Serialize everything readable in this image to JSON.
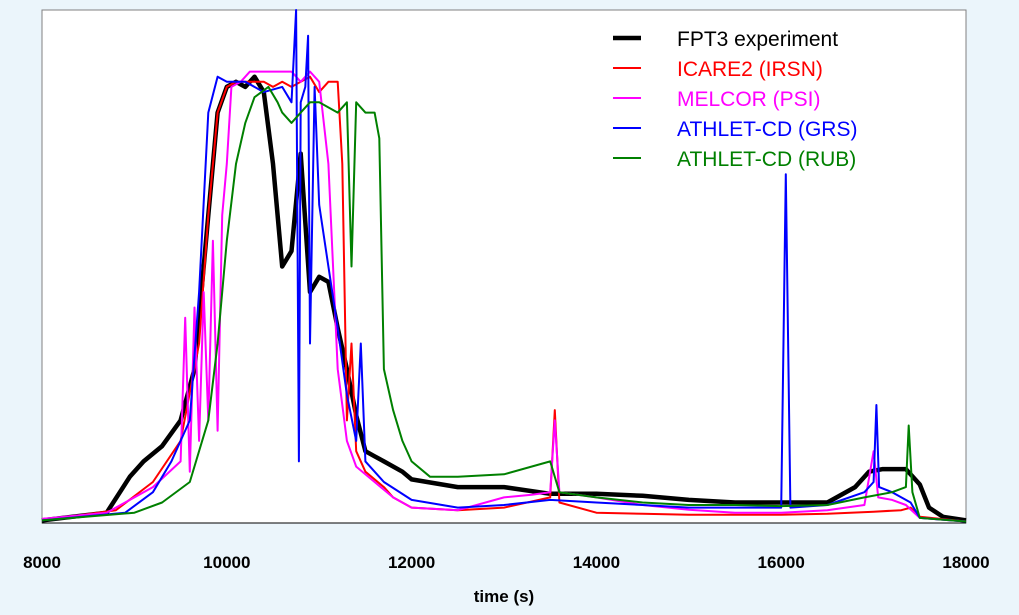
{
  "chart_data": {
    "type": "line",
    "title": "",
    "xlabel": "time (s)",
    "ylabel": "",
    "xlim": [
      8000,
      18000
    ],
    "ylim": [
      0,
      1
    ],
    "x_ticks": [
      "8000",
      "10000",
      "12000",
      "14000",
      "16000",
      "18000"
    ],
    "grid": false,
    "legend_position": "top-right",
    "plot_background": "#ffffff",
    "page_background": "#ebf5fb",
    "series": [
      {
        "name": "FPT3 experiment",
        "color": "#000000",
        "width": 4.5,
        "points": [
          [
            8000,
            0.005
          ],
          [
            8700,
            0.02
          ],
          [
            8950,
            0.09
          ],
          [
            9100,
            0.12
          ],
          [
            9300,
            0.15
          ],
          [
            9500,
            0.2
          ],
          [
            9650,
            0.3
          ],
          [
            9800,
            0.6
          ],
          [
            9900,
            0.8
          ],
          [
            10000,
            0.85
          ],
          [
            10100,
            0.86
          ],
          [
            10200,
            0.85
          ],
          [
            10300,
            0.87
          ],
          [
            10400,
            0.84
          ],
          [
            10500,
            0.7
          ],
          [
            10600,
            0.5
          ],
          [
            10700,
            0.53
          ],
          [
            10800,
            0.72
          ],
          [
            10900,
            0.45
          ],
          [
            11000,
            0.48
          ],
          [
            11100,
            0.47
          ],
          [
            11200,
            0.38
          ],
          [
            11300,
            0.3
          ],
          [
            11400,
            0.21
          ],
          [
            11500,
            0.14
          ],
          [
            11600,
            0.13
          ],
          [
            11700,
            0.12
          ],
          [
            11900,
            0.1
          ],
          [
            12000,
            0.085
          ],
          [
            12500,
            0.07
          ],
          [
            13000,
            0.07
          ],
          [
            13500,
            0.057
          ],
          [
            14000,
            0.057
          ],
          [
            14500,
            0.053
          ],
          [
            15000,
            0.045
          ],
          [
            15500,
            0.04
          ],
          [
            16000,
            0.04
          ],
          [
            16500,
            0.04
          ],
          [
            16800,
            0.07
          ],
          [
            16950,
            0.1
          ],
          [
            17100,
            0.105
          ],
          [
            17350,
            0.105
          ],
          [
            17500,
            0.075
          ],
          [
            17600,
            0.03
          ],
          [
            17750,
            0.012
          ],
          [
            18000,
            0.005
          ]
        ]
      },
      {
        "name": "ICARE2 (IRSN)",
        "color": "#ff0000",
        "width": 2,
        "points": [
          [
            8000,
            0.005
          ],
          [
            8800,
            0.025
          ],
          [
            9200,
            0.08
          ],
          [
            9500,
            0.16
          ],
          [
            9700,
            0.35
          ],
          [
            9800,
            0.6
          ],
          [
            9900,
            0.8
          ],
          [
            10000,
            0.85
          ],
          [
            10100,
            0.86
          ],
          [
            10200,
            0.86
          ],
          [
            10400,
            0.86
          ],
          [
            10500,
            0.85
          ],
          [
            10600,
            0.86
          ],
          [
            10700,
            0.85
          ],
          [
            10800,
            0.86
          ],
          [
            10900,
            0.87
          ],
          [
            11000,
            0.84
          ],
          [
            11100,
            0.86
          ],
          [
            11200,
            0.86
          ],
          [
            11250,
            0.7
          ],
          [
            11300,
            0.2
          ],
          [
            11350,
            0.35
          ],
          [
            11400,
            0.14
          ],
          [
            11500,
            0.1
          ],
          [
            11700,
            0.07
          ],
          [
            11800,
            0.05
          ],
          [
            12000,
            0.03
          ],
          [
            12500,
            0.025
          ],
          [
            13000,
            0.03
          ],
          [
            13500,
            0.05
          ],
          [
            13550,
            0.22
          ],
          [
            13600,
            0.04
          ],
          [
            14000,
            0.02
          ],
          [
            14500,
            0.018
          ],
          [
            15000,
            0.016
          ],
          [
            15500,
            0.016
          ],
          [
            16000,
            0.016
          ],
          [
            16500,
            0.018
          ],
          [
            17000,
            0.022
          ],
          [
            17300,
            0.025
          ],
          [
            17400,
            0.03
          ],
          [
            17500,
            0.012
          ],
          [
            18000,
            0.003
          ]
        ]
      },
      {
        "name": "MELCOR (PSI)",
        "color": "#ff00ff",
        "width": 2,
        "points": [
          [
            8000,
            0.008
          ],
          [
            8700,
            0.02
          ],
          [
            9200,
            0.07
          ],
          [
            9500,
            0.12
          ],
          [
            9550,
            0.4
          ],
          [
            9600,
            0.1
          ],
          [
            9650,
            0.42
          ],
          [
            9700,
            0.16
          ],
          [
            9750,
            0.45
          ],
          [
            9800,
            0.2
          ],
          [
            9850,
            0.55
          ],
          [
            9900,
            0.18
          ],
          [
            9950,
            0.6
          ],
          [
            10000,
            0.7
          ],
          [
            10050,
            0.85
          ],
          [
            10150,
            0.86
          ],
          [
            10250,
            0.88
          ],
          [
            10400,
            0.88
          ],
          [
            10500,
            0.88
          ],
          [
            10700,
            0.88
          ],
          [
            10800,
            0.86
          ],
          [
            10900,
            0.88
          ],
          [
            11000,
            0.86
          ],
          [
            11100,
            0.7
          ],
          [
            11200,
            0.3
          ],
          [
            11300,
            0.16
          ],
          [
            11400,
            0.11
          ],
          [
            11600,
            0.08
          ],
          [
            11800,
            0.05
          ],
          [
            12000,
            0.03
          ],
          [
            12500,
            0.025
          ],
          [
            13000,
            0.05
          ],
          [
            13300,
            0.055
          ],
          [
            13500,
            0.06
          ],
          [
            13550,
            0.2
          ],
          [
            13600,
            0.06
          ],
          [
            14000,
            0.05
          ],
          [
            14500,
            0.035
          ],
          [
            15000,
            0.026
          ],
          [
            15500,
            0.02
          ],
          [
            16000,
            0.02
          ],
          [
            16500,
            0.025
          ],
          [
            16900,
            0.035
          ],
          [
            17000,
            0.14
          ],
          [
            17050,
            0.05
          ],
          [
            17200,
            0.045
          ],
          [
            17350,
            0.035
          ],
          [
            17500,
            0.01
          ],
          [
            18000,
            0.003
          ]
        ]
      },
      {
        "name": "ATHLET-CD (GRS)",
        "color": "#0000ff",
        "width": 2,
        "points": [
          [
            8000,
            0.005
          ],
          [
            8900,
            0.02
          ],
          [
            9200,
            0.06
          ],
          [
            9400,
            0.12
          ],
          [
            9600,
            0.2
          ],
          [
            9700,
            0.45
          ],
          [
            9800,
            0.8
          ],
          [
            9900,
            0.87
          ],
          [
            10000,
            0.86
          ],
          [
            10200,
            0.86
          ],
          [
            10400,
            0.84
          ],
          [
            10600,
            0.85
          ],
          [
            10700,
            0.82
          ],
          [
            10750,
            1.0
          ],
          [
            10780,
            0.12
          ],
          [
            10800,
            0.82
          ],
          [
            10850,
            0.85
          ],
          [
            10880,
            0.95
          ],
          [
            10900,
            0.35
          ],
          [
            10950,
            0.85
          ],
          [
            11000,
            0.62
          ],
          [
            11100,
            0.5
          ],
          [
            11200,
            0.38
          ],
          [
            11300,
            0.25
          ],
          [
            11400,
            0.16
          ],
          [
            11450,
            0.35
          ],
          [
            11500,
            0.12
          ],
          [
            11700,
            0.08
          ],
          [
            12000,
            0.045
          ],
          [
            12500,
            0.03
          ],
          [
            13000,
            0.035
          ],
          [
            13500,
            0.045
          ],
          [
            14000,
            0.04
          ],
          [
            14500,
            0.035
          ],
          [
            15000,
            0.03
          ],
          [
            15500,
            0.03
          ],
          [
            16000,
            0.03
          ],
          [
            16050,
            0.68
          ],
          [
            16100,
            0.03
          ],
          [
            16500,
            0.035
          ],
          [
            16900,
            0.06
          ],
          [
            17000,
            0.08
          ],
          [
            17030,
            0.23
          ],
          [
            17060,
            0.07
          ],
          [
            17200,
            0.06
          ],
          [
            17400,
            0.04
          ],
          [
            17500,
            0.01
          ],
          [
            18000,
            0.003
          ]
        ]
      },
      {
        "name": "ATHLET-CD (RUB)",
        "color": "#008000",
        "width": 2,
        "points": [
          [
            8000,
            0.005
          ],
          [
            9000,
            0.02
          ],
          [
            9300,
            0.04
          ],
          [
            9600,
            0.08
          ],
          [
            9800,
            0.2
          ],
          [
            9900,
            0.35
          ],
          [
            10000,
            0.55
          ],
          [
            10100,
            0.7
          ],
          [
            10200,
            0.78
          ],
          [
            10300,
            0.83
          ],
          [
            10450,
            0.85
          ],
          [
            10550,
            0.82
          ],
          [
            10600,
            0.8
          ],
          [
            10700,
            0.78
          ],
          [
            10800,
            0.8
          ],
          [
            10900,
            0.82
          ],
          [
            11000,
            0.82
          ],
          [
            11200,
            0.8
          ],
          [
            11300,
            0.82
          ],
          [
            11350,
            0.5
          ],
          [
            11400,
            0.82
          ],
          [
            11500,
            0.8
          ],
          [
            11600,
            0.8
          ],
          [
            11650,
            0.75
          ],
          [
            11700,
            0.3
          ],
          [
            11800,
            0.22
          ],
          [
            11900,
            0.16
          ],
          [
            12000,
            0.12
          ],
          [
            12200,
            0.09
          ],
          [
            12500,
            0.09
          ],
          [
            13000,
            0.095
          ],
          [
            13500,
            0.12
          ],
          [
            13600,
            0.06
          ],
          [
            14000,
            0.05
          ],
          [
            14500,
            0.04
          ],
          [
            15000,
            0.035
          ],
          [
            15500,
            0.035
          ],
          [
            16000,
            0.033
          ],
          [
            16500,
            0.035
          ],
          [
            16900,
            0.05
          ],
          [
            17200,
            0.06
          ],
          [
            17350,
            0.07
          ],
          [
            17380,
            0.19
          ],
          [
            17420,
            0.06
          ],
          [
            17500,
            0.01
          ],
          [
            18000,
            0.003
          ]
        ]
      }
    ]
  }
}
